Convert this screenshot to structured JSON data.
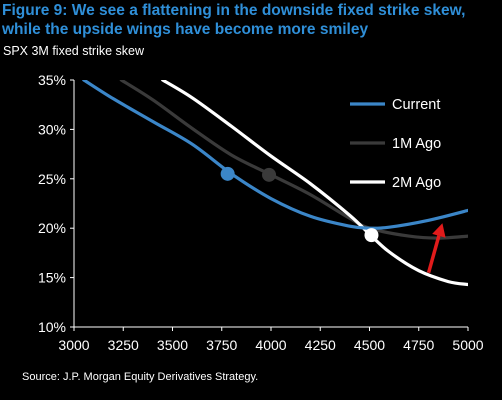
{
  "header": {
    "title": "Figure 9: We see a flattening in the downside fixed strike skew, while the upside wings have become more smiley",
    "subtitle": "SPX 3M fixed strike skew"
  },
  "footer": {
    "source": "Source: J.P. Morgan Equity Derivatives Strategy."
  },
  "chart_data": {
    "type": "line",
    "title": "Figure 9: We see a flattening in the downside fixed strike skew, while the upside wings have become more smiley",
    "subtitle": "SPX 3M fixed strike skew",
    "xlabel": "",
    "ylabel": "",
    "xlim": [
      3000,
      5000
    ],
    "ylim": [
      10,
      35
    ],
    "x_ticks": [
      "3000",
      "3250",
      "3500",
      "3750",
      "4000",
      "4250",
      "4500",
      "4750",
      "5000"
    ],
    "y_ticks": [
      "10%",
      "15%",
      "20%",
      "25%",
      "30%",
      "35%"
    ],
    "grid": false,
    "legend_position": "top-right",
    "colors": {
      "background": "#000000",
      "title": "#2f8fd8",
      "current": "#3b86c8",
      "one_month": "#3a3a3a",
      "two_month": "#ffffff",
      "arrow": "#e11b1b"
    },
    "series": [
      {
        "name": "Current",
        "color": "#3b86c8",
        "x": [
          3050,
          3200,
          3400,
          3600,
          3800,
          4000,
          4200,
          4400,
          4500,
          4600,
          4800,
          5000
        ],
        "y": [
          35,
          33.1,
          30.8,
          28.5,
          25.5,
          23.0,
          21.2,
          20.2,
          20.0,
          20.1,
          20.8,
          21.8
        ],
        "marker": {
          "x": 3780,
          "y": 25.5
        }
      },
      {
        "name": "1M Ago",
        "color": "#3a3a3a",
        "x": [
          3240,
          3400,
          3600,
          3800,
          4000,
          4200,
          4400,
          4500,
          4700,
          4850,
          5000
        ],
        "y": [
          35,
          33.0,
          30.1,
          27.4,
          25.4,
          23.4,
          21.0,
          20.0,
          19.2,
          19.0,
          19.2
        ],
        "marker": {
          "x": 3990,
          "y": 25.4
        }
      },
      {
        "name": "2M Ago",
        "color": "#ffffff",
        "x": [
          3450,
          3600,
          3800,
          4000,
          4200,
          4400,
          4500,
          4600,
          4750,
          4900,
          5000
        ],
        "y": [
          35,
          33.2,
          30.3,
          27.3,
          24.5,
          21.3,
          19.4,
          17.6,
          15.7,
          14.6,
          14.3
        ],
        "marker": {
          "x": 4510,
          "y": 19.3
        }
      }
    ],
    "annotations": [
      {
        "type": "arrow",
        "color": "#e11b1b",
        "from": {
          "x": 4800,
          "y": 15.5
        },
        "to": {
          "x": 4870,
          "y": 20.5
        }
      }
    ]
  }
}
